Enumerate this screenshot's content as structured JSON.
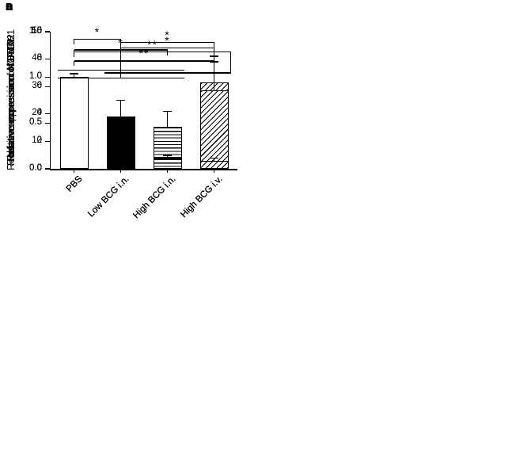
{
  "figure": {
    "kind": "multi-panel bar figure",
    "background": "#ffffff",
    "ink": "#000000"
  },
  "chart_data": [
    {
      "panel": "A",
      "type": "bar",
      "title": "",
      "xlabel": "",
      "ylabel": "Relative expression of Batf2",
      "categories": [
        "PBS",
        "Low BCG i.n.",
        "High BCG i.n.",
        "High BCG i.v."
      ],
      "values": [
        1.0,
        2.5,
        3.3,
        31.5
      ],
      "errors": [
        0.5,
        1.3,
        1.2,
        9.5
      ],
      "error_type": "upper SEM",
      "ylim": [
        0,
        50
      ],
      "ytick_values": [
        0,
        10,
        20,
        30,
        40,
        50
      ],
      "ytick_labels": [
        "0",
        "10",
        "20",
        "30",
        "40",
        "50"
      ],
      "bar_patterns": [
        "open",
        "solid",
        "hstripe",
        "dstripe"
      ],
      "grid": false,
      "legend": "none",
      "significance": [
        {
          "type": "group-vs-bar",
          "label": "*",
          "group": [
            0,
            2
          ],
          "group_y": 36,
          "connector": 1,
          "bar": 3,
          "top_y": 46
        }
      ]
    },
    {
      "panel": "B",
      "type": "bar",
      "title": "",
      "xlabel": "",
      "ylabel": "Relative expression of GATA2",
      "categories": [
        "PBS",
        "Low BCG i.n.",
        "High BCG i.n.",
        "High BCG i.v."
      ],
      "values": [
        1.01,
        0.57,
        0.46,
        0.21
      ],
      "errors": [
        0.03,
        0.18,
        0.17,
        0.09
      ],
      "error_type": "upper SEM",
      "ylim": [
        0,
        1.5
      ],
      "ytick_values": [
        0,
        0.5,
        1.0,
        1.5
      ],
      "ytick_labels": [
        "0.0",
        "0.5",
        "1.0",
        "1.5"
      ],
      "bar_patterns": [
        "open",
        "solid",
        "hstripe",
        "dstripe"
      ],
      "grid": false,
      "legend": "none",
      "significance": [
        {
          "type": "simple",
          "label": "*",
          "from": 0,
          "to": 1,
          "y": 1.42
        },
        {
          "type": "simple",
          "label": "*",
          "from": 0,
          "to": 2,
          "y": 1.3
        },
        {
          "type": "simple",
          "label": "**",
          "from": 0,
          "to": 3,
          "y": 1.18
        }
      ]
    },
    {
      "panel": "C",
      "type": "bar",
      "title": "",
      "xlabel": "",
      "ylabel": "Relative expression of IRF8",
      "categories": [
        "PBS",
        "Low BCG i.n.",
        "High BCG i.n.",
        "High BCG i.v."
      ],
      "values": [
        1.0,
        0.78,
        0.85,
        5.7
      ],
      "errors": [
        0,
        0.15,
        0.15,
        2.1
      ],
      "error_type": "upper SEM",
      "ylim": [
        0,
        10
      ],
      "ytick_values": [
        0,
        2,
        4,
        6,
        8,
        10
      ],
      "ytick_labels": [
        "0",
        "2",
        "4",
        "6",
        "8",
        "10"
      ],
      "bar_patterns": [
        "open",
        "solid",
        "hstripe",
        "dstripe"
      ],
      "grid": false,
      "legend": "none",
      "significance": [
        {
          "type": "group-vs-bar",
          "label": "*",
          "group": [
            0,
            2
          ],
          "group_y": 6.6,
          "connector": 1,
          "bar": 3,
          "top_y": 8.8
        }
      ]
    },
    {
      "panel": "D",
      "type": "bar",
      "title": "",
      "xlabel": "",
      "ylabel": "Relative expression of NOTCH1",
      "categories": [
        "PBS",
        "Low BCG i.n.",
        "High BCG i.n.",
        "High BCG i.v."
      ],
      "values": [
        1.0,
        0.33,
        0.11,
        0.09
      ],
      "errors": [
        0,
        0.11,
        0.035,
        0.03
      ],
      "error_type": "upper SEM",
      "ylim": [
        0,
        1.5
      ],
      "ytick_values": [
        0,
        0.5,
        1.0,
        1.5
      ],
      "ytick_labels": [
        "0.0",
        "0.5",
        "1.0",
        "1.5"
      ],
      "bar_patterns": [
        "open",
        "solid",
        "hstripe",
        "dstripe"
      ],
      "grid": false,
      "legend": "none",
      "significance": [
        {
          "type": "bar-vs-group",
          "label": "**",
          "bar": 0,
          "top_y": 1.28,
          "group": [
            1,
            3
          ],
          "group_y": 1.05
        }
      ]
    }
  ]
}
